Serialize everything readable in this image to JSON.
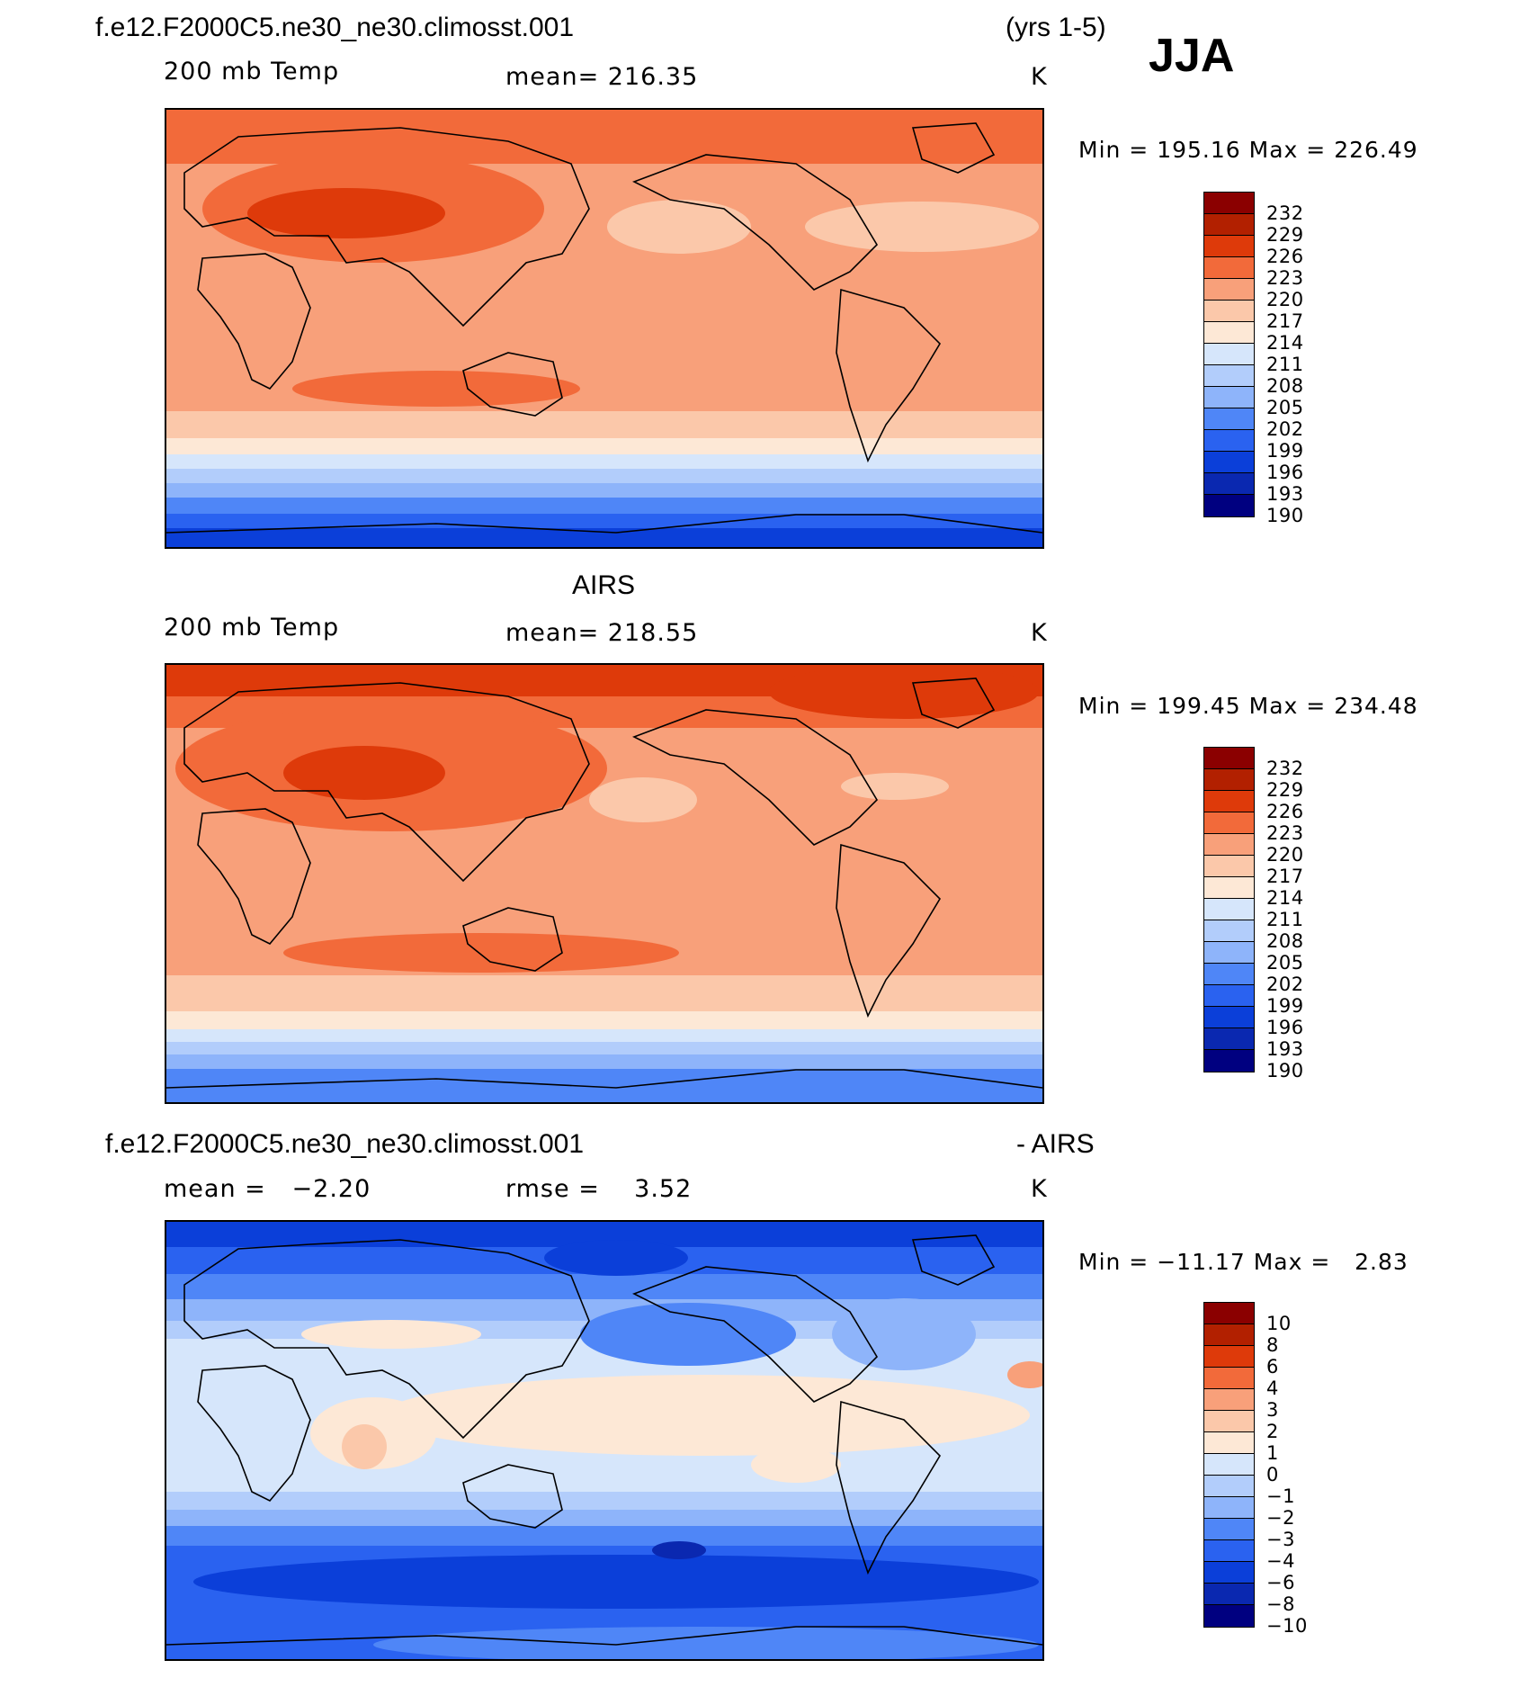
{
  "header": {
    "case_name": "f.e12.F2000C5.ne30_ne30.climosst.001",
    "years": "(yrs 1-5)",
    "season": "JJA"
  },
  "palette_temp": [
    "#8b0000",
    "#b22000",
    "#de3a0a",
    "#f26a3a",
    "#f8a07a",
    "#fbc8aa",
    "#fde8d6",
    "#d6e6fb",
    "#b2cdfb",
    "#8eb4fa",
    "#4f86f7",
    "#2a62f0",
    "#0b3fd9",
    "#0a28b0",
    "#000080"
  ],
  "palette_diff": [
    "#8b0000",
    "#b22000",
    "#de3a0a",
    "#f26a3a",
    "#f8a07a",
    "#fbc8aa",
    "#fde8d6",
    "#d6e6fb",
    "#b2cdfb",
    "#8eb4fa",
    "#4f86f7",
    "#2a62f0",
    "#0b3fd9",
    "#0a28b0",
    "#000080"
  ],
  "chart_data": [
    {
      "type": "heatmap",
      "title": "f.e12.F2000C5.ne30_ne30.climosst.001",
      "variable": "200 mb Temp",
      "units": "K",
      "mean_label": "mean=",
      "mean": "216.35",
      "min_label": "Min =",
      "min": "195.16",
      "max_label": "Max =",
      "max": "226.49",
      "colorbar_levels": [
        "232",
        "229",
        "226",
        "223",
        "220",
        "217",
        "214",
        "211",
        "208",
        "205",
        "202",
        "199",
        "196",
        "193",
        "190"
      ]
    },
    {
      "type": "heatmap",
      "title": "AIRS",
      "variable": "200 mb Temp",
      "units": "K",
      "mean_label": "mean=",
      "mean": "218.55",
      "min_label": "Min =",
      "min": "199.45",
      "max_label": "Max =",
      "max": "234.48",
      "colorbar_levels": [
        "232",
        "229",
        "226",
        "223",
        "220",
        "217",
        "214",
        "211",
        "208",
        "205",
        "202",
        "199",
        "196",
        "193",
        "190"
      ]
    },
    {
      "type": "heatmap",
      "title": "f.e12.F2000C5.ne30_ne30.climosst.001",
      "title_suffix": "- AIRS",
      "units": "K",
      "mean_label": "mean =",
      "mean": "−2.20",
      "rmse_label": "rmse =",
      "rmse": "3.52",
      "min_label": "Min =",
      "min": "−11.17",
      "max_label": "Max =",
      "max": "2.83",
      "colorbar_levels": [
        "10",
        "8",
        "6",
        "4",
        "3",
        "2",
        "1",
        "0",
        "−1",
        "−2",
        "−3",
        "−4",
        "−6",
        "−8",
        "−10"
      ]
    }
  ]
}
